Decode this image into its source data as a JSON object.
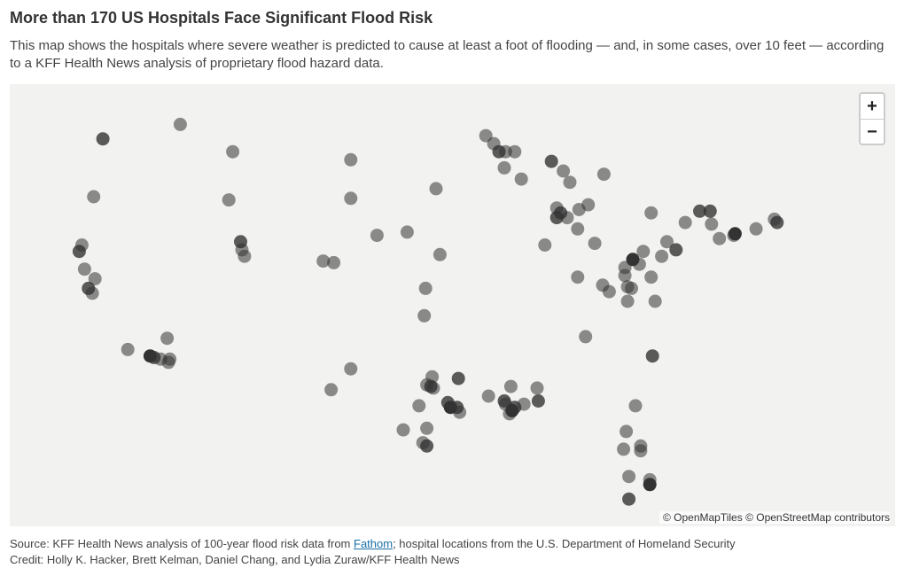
{
  "header": {
    "title": "More than 170 US Hospitals Face Significant Flood Risk",
    "subtitle": "This map shows the hospitals where severe weather is predicted to cause at least a foot of flooding — and, in some cases, over 10 feet — according to a KFF Health News analysis of proprietary flood hazard data."
  },
  "map": {
    "zoom_in_label": "+",
    "zoom_out_label": "−",
    "attribution": "© OpenMapTiles © OpenStreetMap contributors",
    "background_color": "#f2f2f0",
    "marker_color": "#333333",
    "hospitals": [
      {
        "lon": -122.4,
        "lat": 47.6,
        "level": 2
      },
      {
        "lon": -116.5,
        "lat": 48.5,
        "level": 1
      },
      {
        "lon": -112.5,
        "lat": 46.8,
        "level": 1
      },
      {
        "lon": -123.1,
        "lat": 44.0,
        "level": 1
      },
      {
        "lon": -124.0,
        "lat": 41.0,
        "level": 1
      },
      {
        "lon": -124.2,
        "lat": 40.6,
        "level": 2
      },
      {
        "lon": -123.8,
        "lat": 39.5,
        "level": 1
      },
      {
        "lon": -123.0,
        "lat": 38.9,
        "level": 1
      },
      {
        "lon": -123.5,
        "lat": 38.3,
        "level": 2
      },
      {
        "lon": -123.2,
        "lat": 38.0,
        "level": 1
      },
      {
        "lon": -117.5,
        "lat": 35.2,
        "level": 1
      },
      {
        "lon": -120.5,
        "lat": 34.5,
        "level": 1
      },
      {
        "lon": -118.8,
        "lat": 34.1,
        "level": 3
      },
      {
        "lon": -118.5,
        "lat": 34.0,
        "level": 2
      },
      {
        "lon": -118.0,
        "lat": 33.9,
        "level": 1
      },
      {
        "lon": -117.3,
        "lat": 33.9,
        "level": 1
      },
      {
        "lon": -117.4,
        "lat": 33.7,
        "level": 1
      },
      {
        "lon": -112.8,
        "lat": 43.8,
        "level": 1
      },
      {
        "lon": -111.9,
        "lat": 41.2,
        "level": 2
      },
      {
        "lon": -111.8,
        "lat": 40.7,
        "level": 1
      },
      {
        "lon": -111.6,
        "lat": 40.3,
        "level": 1
      },
      {
        "lon": -103.5,
        "lat": 46.3,
        "level": 1
      },
      {
        "lon": -103.5,
        "lat": 43.9,
        "level": 1
      },
      {
        "lon": -101.5,
        "lat": 41.6,
        "level": 1
      },
      {
        "lon": -97.0,
        "lat": 44.5,
        "level": 1
      },
      {
        "lon": -99.2,
        "lat": 41.8,
        "level": 1
      },
      {
        "lon": -105.6,
        "lat": 40.0,
        "level": 1
      },
      {
        "lon": -104.8,
        "lat": 39.9,
        "level": 1
      },
      {
        "lon": -96.7,
        "lat": 40.4,
        "level": 1
      },
      {
        "lon": -97.8,
        "lat": 38.3,
        "level": 1
      },
      {
        "lon": -97.9,
        "lat": 36.6,
        "level": 1
      },
      {
        "lon": -103.5,
        "lat": 33.3,
        "level": 1
      },
      {
        "lon": -105.0,
        "lat": 32.0,
        "level": 1
      },
      {
        "lon": -97.3,
        "lat": 32.8,
        "level": 1
      },
      {
        "lon": -97.7,
        "lat": 32.3,
        "level": 1
      },
      {
        "lon": -97.4,
        "lat": 32.2,
        "level": 2
      },
      {
        "lon": -97.2,
        "lat": 32.1,
        "level": 1
      },
      {
        "lon": -95.3,
        "lat": 32.7,
        "level": 2
      },
      {
        "lon": -98.3,
        "lat": 31.0,
        "level": 1
      },
      {
        "lon": -96.1,
        "lat": 31.2,
        "level": 2
      },
      {
        "lon": -95.9,
        "lat": 30.9,
        "level": 3
      },
      {
        "lon": -95.4,
        "lat": 30.9,
        "level": 2
      },
      {
        "lon": -95.2,
        "lat": 30.6,
        "level": 1
      },
      {
        "lon": -99.5,
        "lat": 29.5,
        "level": 1
      },
      {
        "lon": -97.7,
        "lat": 29.6,
        "level": 1
      },
      {
        "lon": -98.0,
        "lat": 28.7,
        "level": 1
      },
      {
        "lon": -97.7,
        "lat": 28.5,
        "level": 2
      },
      {
        "lon": -93.0,
        "lat": 31.6,
        "level": 1
      },
      {
        "lon": -91.8,
        "lat": 31.3,
        "level": 2
      },
      {
        "lon": -91.7,
        "lat": 31.1,
        "level": 1
      },
      {
        "lon": -91.0,
        "lat": 30.9,
        "level": 2
      },
      {
        "lon": -91.2,
        "lat": 30.7,
        "level": 3
      },
      {
        "lon": -91.4,
        "lat": 30.5,
        "level": 1
      },
      {
        "lon": -90.3,
        "lat": 31.1,
        "level": 1
      },
      {
        "lon": -89.2,
        "lat": 31.3,
        "level": 2
      },
      {
        "lon": -91.3,
        "lat": 32.2,
        "level": 1
      },
      {
        "lon": -89.3,
        "lat": 32.1,
        "level": 1
      },
      {
        "lon": -93.2,
        "lat": 47.8,
        "level": 1
      },
      {
        "lon": -92.6,
        "lat": 47.3,
        "level": 1
      },
      {
        "lon": -92.2,
        "lat": 46.8,
        "level": 2
      },
      {
        "lon": -91.7,
        "lat": 46.8,
        "level": 1
      },
      {
        "lon": -91.0,
        "lat": 46.8,
        "level": 1
      },
      {
        "lon": -91.8,
        "lat": 45.8,
        "level": 1
      },
      {
        "lon": -90.5,
        "lat": 45.1,
        "level": 1
      },
      {
        "lon": -88.2,
        "lat": 46.2,
        "level": 2
      },
      {
        "lon": -87.3,
        "lat": 45.6,
        "level": 1
      },
      {
        "lon": -86.8,
        "lat": 44.9,
        "level": 1
      },
      {
        "lon": -87.8,
        "lat": 43.3,
        "level": 1
      },
      {
        "lon": -87.5,
        "lat": 43.0,
        "level": 2
      },
      {
        "lon": -87.8,
        "lat": 42.7,
        "level": 2
      },
      {
        "lon": -87.0,
        "lat": 42.7,
        "level": 1
      },
      {
        "lon": -86.1,
        "lat": 43.2,
        "level": 1
      },
      {
        "lon": -85.4,
        "lat": 43.5,
        "level": 1
      },
      {
        "lon": -84.2,
        "lat": 45.4,
        "level": 1
      },
      {
        "lon": -86.2,
        "lat": 42.0,
        "level": 1
      },
      {
        "lon": -88.7,
        "lat": 41.0,
        "level": 1
      },
      {
        "lon": -84.9,
        "lat": 41.1,
        "level": 1
      },
      {
        "lon": -86.2,
        "lat": 39.0,
        "level": 1
      },
      {
        "lon": -84.3,
        "lat": 38.5,
        "level": 1
      },
      {
        "lon": -83.8,
        "lat": 38.1,
        "level": 1
      },
      {
        "lon": -82.4,
        "lat": 38.4,
        "level": 1
      },
      {
        "lon": -82.6,
        "lat": 39.1,
        "level": 1
      },
      {
        "lon": -82.6,
        "lat": 39.6,
        "level": 1
      },
      {
        "lon": -82.1,
        "lat": 38.3,
        "level": 1
      },
      {
        "lon": -82.4,
        "lat": 37.5,
        "level": 1
      },
      {
        "lon": -80.6,
        "lat": 39.0,
        "level": 1
      },
      {
        "lon": -80.3,
        "lat": 37.5,
        "level": 1
      },
      {
        "lon": -85.6,
        "lat": 35.3,
        "level": 1
      },
      {
        "lon": -80.5,
        "lat": 34.1,
        "level": 2
      },
      {
        "lon": -82.0,
        "lat": 40.1,
        "level": 3
      },
      {
        "lon": -81.5,
        "lat": 39.8,
        "level": 1
      },
      {
        "lon": -81.2,
        "lat": 40.6,
        "level": 1
      },
      {
        "lon": -79.8,
        "lat": 40.3,
        "level": 1
      },
      {
        "lon": -79.4,
        "lat": 41.2,
        "level": 1
      },
      {
        "lon": -78.7,
        "lat": 40.7,
        "level": 2
      },
      {
        "lon": -80.6,
        "lat": 43.0,
        "level": 1
      },
      {
        "lon": -78.0,
        "lat": 42.4,
        "level": 1
      },
      {
        "lon": -76.9,
        "lat": 43.1,
        "level": 2
      },
      {
        "lon": -76.1,
        "lat": 43.1,
        "level": 2
      },
      {
        "lon": -76.0,
        "lat": 42.3,
        "level": 1
      },
      {
        "lon": -75.4,
        "lat": 41.4,
        "level": 1
      },
      {
        "lon": -74.2,
        "lat": 41.7,
        "level": 3
      },
      {
        "lon": -74.3,
        "lat": 41.6,
        "level": 1
      },
      {
        "lon": -72.6,
        "lat": 42.0,
        "level": 1
      },
      {
        "lon": -71.2,
        "lat": 42.6,
        "level": 1
      },
      {
        "lon": -71.0,
        "lat": 42.4,
        "level": 2
      },
      {
        "lon": -81.8,
        "lat": 31.0,
        "level": 1
      },
      {
        "lon": -82.5,
        "lat": 29.4,
        "level": 1
      },
      {
        "lon": -82.7,
        "lat": 28.3,
        "level": 1
      },
      {
        "lon": -81.4,
        "lat": 28.5,
        "level": 1
      },
      {
        "lon": -81.4,
        "lat": 28.2,
        "level": 1
      },
      {
        "lon": -82.3,
        "lat": 26.6,
        "level": 1
      },
      {
        "lon": -80.7,
        "lat": 26.4,
        "level": 1
      },
      {
        "lon": -80.7,
        "lat": 26.1,
        "level": 3
      },
      {
        "lon": -82.3,
        "lat": 25.2,
        "level": 2
      }
    ]
  },
  "footer": {
    "source_prefix": "Source: KFF Health News analysis of 100-year flood risk data from ",
    "source_link": "Fathom",
    "source_suffix": "; hospital locations from the U.S. Department of Homeland Security",
    "credit": "Credit: Holly K. Hacker, Brett Kelman, Daniel Chang, and Lydia Zuraw/KFF Health News"
  }
}
